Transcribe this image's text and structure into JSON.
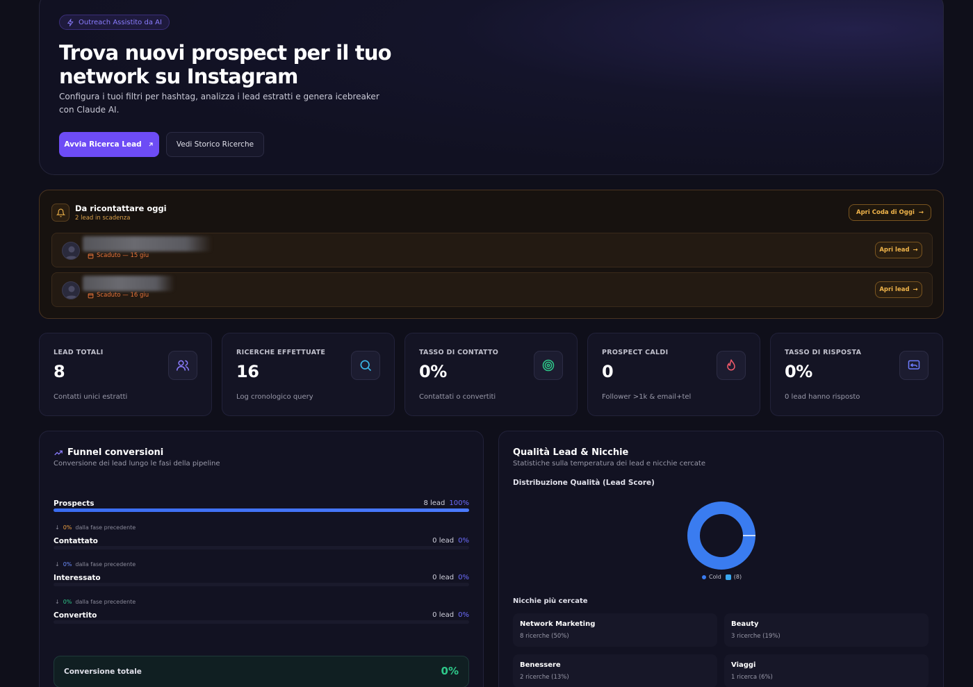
{
  "hero": {
    "badge": "Outreach Assistito da AI",
    "title": "Trova nuovi prospect per il tuo network su Instagram",
    "subtitle": "Configura i tuoi filtri per hashtag, analizza i lead estratti e genera icebreaker con Claude AI.",
    "primary_button": "Avvia Ricerca Lead",
    "secondary_button": "Vedi Storico Ricerche"
  },
  "recall": {
    "title": "Da ricontattare oggi",
    "subtitle": "2 lead in scadenza",
    "queue_button": "Apri Coda di Oggi",
    "leads": [
      {
        "status": "Scaduto — 15 giu",
        "action": "Apri lead"
      },
      {
        "status": "Scaduto — 16 giu",
        "action": "Apri lead"
      }
    ]
  },
  "stats": [
    {
      "label": "LEAD TOTALI",
      "value": "8",
      "desc": "Contatti unici estratti",
      "icon": "users-icon",
      "color": "#8b7dff"
    },
    {
      "label": "RICERCHE EFFETTUATE",
      "value": "16",
      "desc": "Log cronologico query",
      "icon": "search-icon",
      "color": "#3ab8e8"
    },
    {
      "label": "TASSO DI CONTATTO",
      "value": "0%",
      "desc": "Contattati o convertiti",
      "icon": "target-icon",
      "color": "#2ec98a"
    },
    {
      "label": "PROSPECT CALDI",
      "value": "0",
      "desc": "Follower >1k & email+tel",
      "icon": "flame-icon",
      "color": "#f05a6a"
    },
    {
      "label": "TASSO DI RISPOSTA",
      "value": "0%",
      "desc": "0 lead hanno risposto",
      "icon": "reply-icon",
      "color": "#6d7dff"
    }
  ],
  "funnel": {
    "title": "Funnel conversioni",
    "subtitle": "Conversione dei lead lungo le fasi della pipeline",
    "stages": [
      {
        "name": "Prospects",
        "count": "8 lead",
        "pct": "100%",
        "fill": 1.0,
        "drop": ""
      },
      {
        "name": "Contattato",
        "count": "0 lead",
        "pct": "0%",
        "fill": 0,
        "drop": "0%",
        "drop_text": "dalla fase precedente"
      },
      {
        "name": "Interessato",
        "count": "0 lead",
        "pct": "0%",
        "fill": 0,
        "drop": "0%",
        "drop_text": "dalla fase precedente"
      },
      {
        "name": "Convertito",
        "count": "0 lead",
        "pct": "0%",
        "fill": 0,
        "drop": "0%",
        "drop_text": "dalla fase precedente"
      }
    ],
    "total_label": "Conversione totale",
    "total_value": "0%"
  },
  "quality": {
    "title": "Qualità Lead & Nicchie",
    "subtitle": "Statistiche sulla temperatura dei lead e nicchie cercate",
    "distribution_title": "Distribuzione Qualità (Lead Score)",
    "legend_label": "Cold",
    "legend_count": "(8)",
    "legend_color": "#3a7cf0",
    "niches_title": "Nicchie più cercate",
    "niches": [
      {
        "name": "Network Marketing",
        "count": "8 ricerche (50%)"
      },
      {
        "name": "Beauty",
        "count": "3 ricerche (19%)"
      },
      {
        "name": "Benessere",
        "count": "2 ricerche (13%)"
      },
      {
        "name": "Viaggi",
        "count": "1 ricerca (6%)"
      }
    ]
  }
}
